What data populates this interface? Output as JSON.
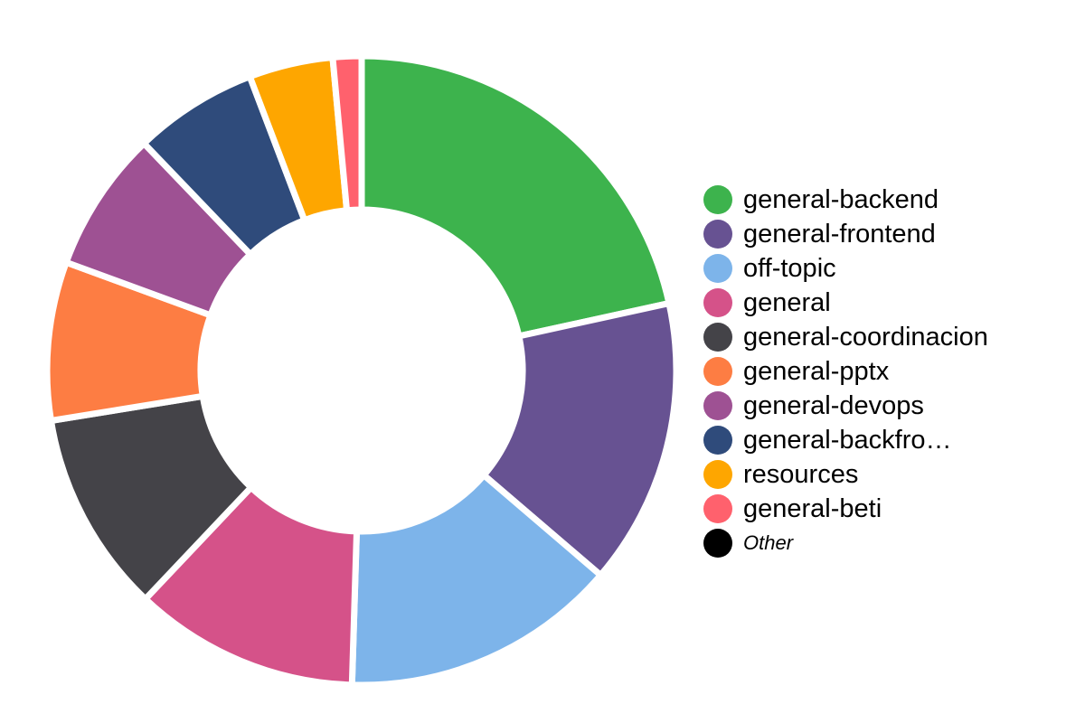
{
  "chart_data": {
    "type": "pie",
    "variant": "donut",
    "title": "",
    "legend_position": "right",
    "slices": [
      {
        "label": "general-backend",
        "value": 22.0,
        "color": "#3db34d"
      },
      {
        "label": "general-frontend",
        "value": 15.0,
        "color": "#675292"
      },
      {
        "label": "off-topic",
        "value": 14.5,
        "color": "#7db4ea"
      },
      {
        "label": "general",
        "value": 11.8,
        "color": "#d55289"
      },
      {
        "label": "general-coordinacion",
        "value": 10.6,
        "color": "#444348"
      },
      {
        "label": "general-pptx",
        "value": 8.3,
        "color": "#fd7d43"
      },
      {
        "label": "general-devops",
        "value": 7.4,
        "color": "#9e5193"
      },
      {
        "label": "general-backfro…",
        "value": 6.5,
        "color": "#2f4b7b"
      },
      {
        "label": "resources",
        "value": 4.4,
        "color": "#fea600"
      },
      {
        "label": "general-beti",
        "value": 1.5,
        "color": "#ff616d"
      }
    ],
    "other": {
      "label": "Other",
      "value": 0,
      "color": "#000000"
    }
  }
}
